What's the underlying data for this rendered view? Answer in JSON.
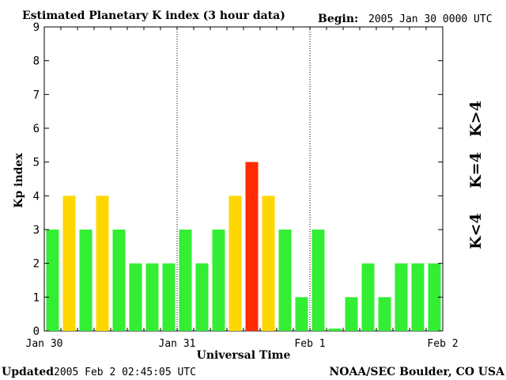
{
  "title": "Estimated Planetary K index (3 hour data)",
  "begin_label": "Begin:",
  "begin_value": "2005 Jan 30 0000 UTC",
  "updated_label": "Updated",
  "updated_value": "2005 Feb  2 02:45:05 UTC",
  "source": "NOAA/SEC Boulder, CO USA",
  "legend": {
    "low": "K<4",
    "mid": "K=4",
    "high": "K>4"
  },
  "colors": {
    "low": "#33ee33",
    "mid": "#ffd700",
    "high": "#ff2a00"
  },
  "chart_data": {
    "type": "bar",
    "xlabel": "Universal Time",
    "ylabel": "Kp index",
    "ylim": [
      0,
      9
    ],
    "yticks": [
      "0",
      "1",
      "2",
      "3",
      "4",
      "5",
      "6",
      "7",
      "8",
      "9"
    ],
    "xtick_labels": [
      "Jan 30",
      "Jan 31",
      "Feb 1",
      "Feb 2"
    ],
    "day_separators": [
      "Jan 31",
      "Feb 1"
    ],
    "interval_hours": 3,
    "values": [
      3,
      4,
      3,
      4,
      3,
      2,
      2,
      2,
      3,
      2,
      3,
      4,
      5,
      4,
      3,
      1,
      3,
      0.07,
      1,
      2,
      1,
      2,
      2,
      2
    ],
    "grid": false,
    "legend_position": "right"
  }
}
